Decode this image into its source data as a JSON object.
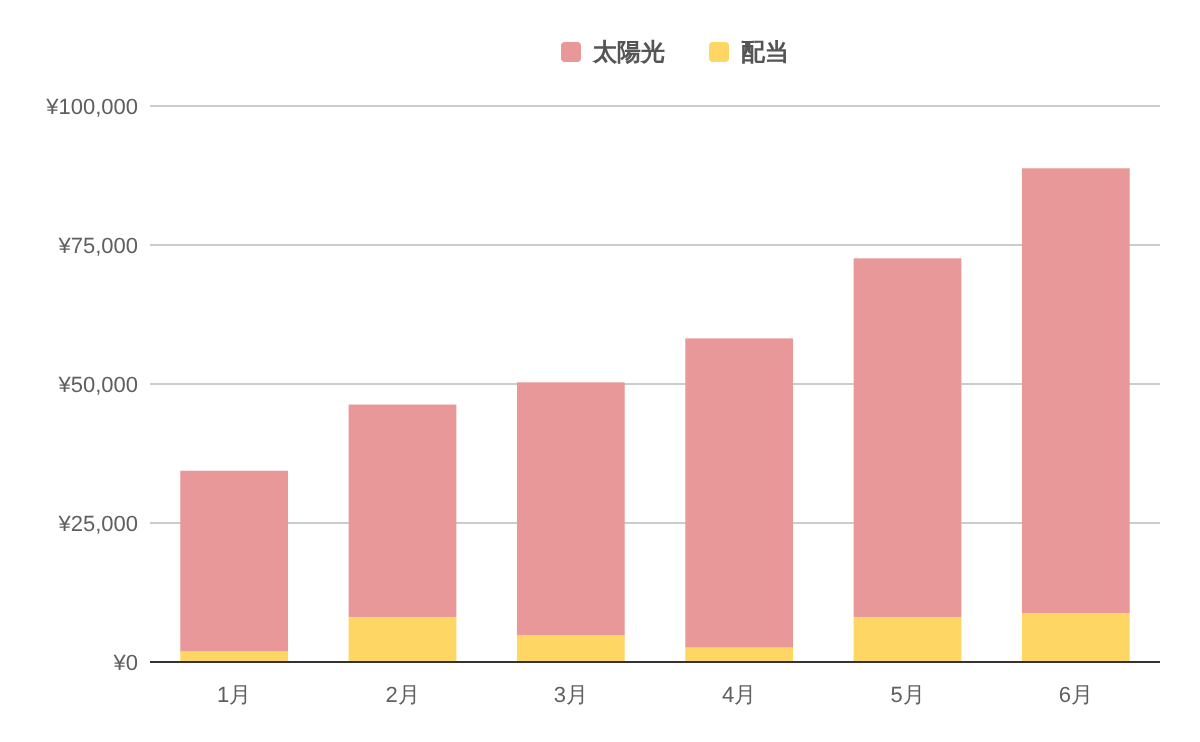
{
  "chart_data": {
    "type": "bar",
    "stacked": true,
    "categories": [
      "1月",
      "2月",
      "3月",
      "4月",
      "5月",
      "6月"
    ],
    "series": [
      {
        "name": "配当",
        "color": "#fdd663",
        "values": [
          1900,
          8100,
          4800,
          2600,
          8100,
          8800
        ]
      },
      {
        "name": "太陽光",
        "color": "#e89898",
        "values": [
          32500,
          38200,
          45500,
          55600,
          64500,
          80000
        ]
      }
    ],
    "ylim": [
      0,
      100000
    ],
    "yticks": [
      {
        "value": 0,
        "label": "¥0"
      },
      {
        "value": 25000,
        "label": "¥25,000"
      },
      {
        "value": 50000,
        "label": "¥50,000"
      },
      {
        "value": 75000,
        "label": "¥75,000"
      },
      {
        "value": 100000,
        "label": "¥100,000"
      }
    ],
    "grid": "y",
    "legend": "top"
  }
}
